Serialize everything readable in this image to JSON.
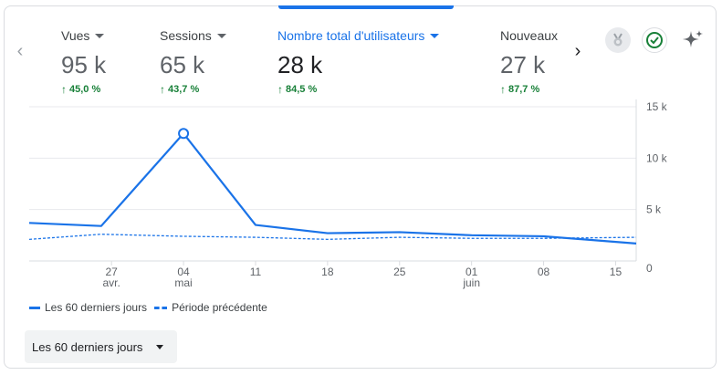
{
  "metrics": [
    {
      "label": "Vues",
      "value": "95 k",
      "change": "45,0 %",
      "selected": false
    },
    {
      "label": "Sessions",
      "value": "65 k",
      "change": "43,7 %",
      "selected": false
    },
    {
      "label": "Nombre total d'utilisateurs",
      "value": "28 k",
      "change": "84,5 %",
      "selected": true
    },
    {
      "label": "Nouveaux",
      "value": "27 k",
      "change": "87,7 %",
      "selected": false
    }
  ],
  "nav": {
    "prev_icon": "chevron-left-icon",
    "next_icon": "chevron-right-icon"
  },
  "tools": [
    {
      "icon": "medal-badge-icon"
    },
    {
      "icon": "check-circle-icon"
    },
    {
      "icon": "sparkle-icon"
    }
  ],
  "chart_data": {
    "type": "line",
    "x_tick_labels": [
      {
        "line1": "27",
        "line2": "avr."
      },
      {
        "line1": "04",
        "line2": "mai"
      },
      {
        "line1": "11",
        "line2": ""
      },
      {
        "line1": "18",
        "line2": ""
      },
      {
        "line1": "25",
        "line2": ""
      },
      {
        "line1": "01",
        "line2": "juin"
      },
      {
        "line1": "08",
        "line2": ""
      },
      {
        "line1": "15",
        "line2": ""
      }
    ],
    "y_tick_labels": [
      "0",
      "5 k",
      "10 k",
      "15 k"
    ],
    "ylim": [
      0,
      15000
    ],
    "grid": true,
    "series": [
      {
        "name": "Les 60 derniers jours",
        "style": "solid",
        "color": "#1a73e8",
        "x": [
          "2024-04-19",
          "2024-04-26",
          "2024-05-04",
          "2024-05-11",
          "2024-05-18",
          "2024-05-25",
          "2024-06-01",
          "2024-06-08",
          "2024-06-17"
        ],
        "values": [
          3700,
          3400,
          12400,
          3500,
          2700,
          2800,
          2500,
          2400,
          1700
        ],
        "highlight_index": 2
      },
      {
        "name": "Période précédente",
        "style": "dashed",
        "color": "#1a73e8",
        "x": [
          "2024-04-19",
          "2024-04-26",
          "2024-05-04",
          "2024-05-11",
          "2024-05-18",
          "2024-05-25",
          "2024-06-01",
          "2024-06-08",
          "2024-06-17"
        ],
        "values": [
          2100,
          2600,
          2400,
          2300,
          2100,
          2300,
          2200,
          2200,
          2300
        ]
      }
    ]
  },
  "legend": {
    "current": "Les 60 derniers jours",
    "previous": "Période précédente"
  },
  "date_range": {
    "label": "Les 60 derniers jours"
  }
}
